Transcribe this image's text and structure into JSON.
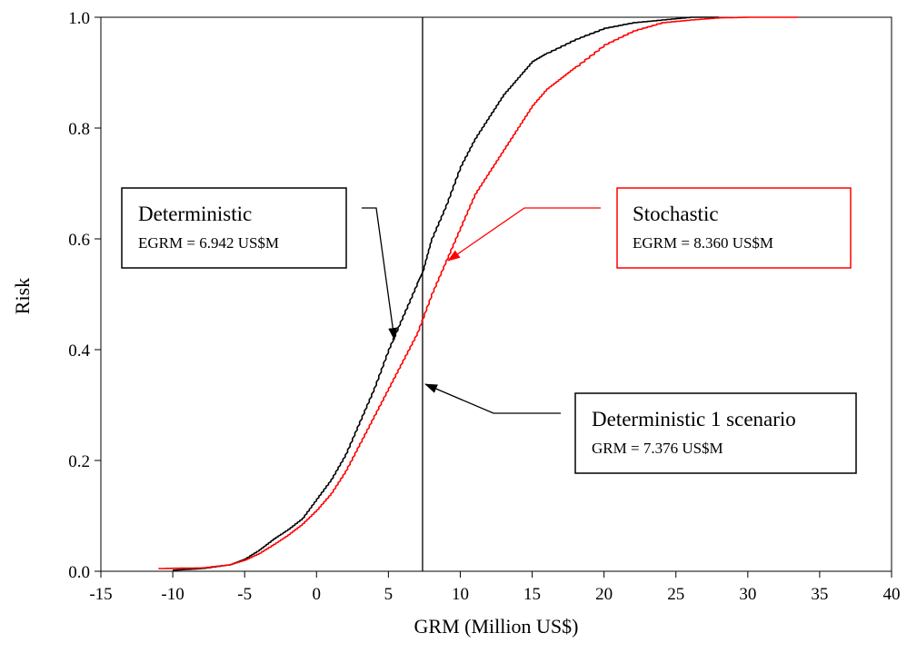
{
  "chart_data": {
    "type": "line",
    "xlabel": "GRM (Million US$)",
    "ylabel": "Risk",
    "xlim": [
      -15,
      40
    ],
    "ylim": [
      0,
      1
    ],
    "x_ticks": [
      "-15",
      "-10",
      "-5",
      "0",
      "5",
      "10",
      "15",
      "20",
      "25",
      "30",
      "35",
      "40"
    ],
    "y_ticks": [
      "0.0",
      "0.2",
      "0.4",
      "0.6",
      "0.8",
      "1.0"
    ],
    "grid": false,
    "vertical_line": {
      "x": 7.376
    },
    "series": [
      {
        "name": "Deterministic",
        "color": "#000000",
        "x": [
          -10,
          -8,
          -6,
          -5,
          -4,
          -3,
          -2,
          -1,
          0,
          1,
          2,
          3,
          4,
          5,
          6,
          7,
          7.376,
          8,
          9,
          10,
          11,
          12,
          13,
          14,
          15,
          16,
          18,
          20,
          22,
          24,
          26,
          28
        ],
        "y": [
          0.002,
          0.005,
          0.012,
          0.022,
          0.038,
          0.058,
          0.075,
          0.095,
          0.13,
          0.165,
          0.21,
          0.27,
          0.33,
          0.4,
          0.46,
          0.52,
          0.54,
          0.6,
          0.66,
          0.73,
          0.78,
          0.82,
          0.86,
          0.89,
          0.92,
          0.935,
          0.96,
          0.98,
          0.99,
          0.995,
          1.0,
          1.0
        ]
      },
      {
        "name": "Stochastic",
        "color": "#ff0000",
        "x": [
          -11,
          -8,
          -6,
          -5,
          -4,
          -3,
          -2,
          -1,
          0,
          1,
          2,
          3,
          4,
          5,
          6,
          7,
          8,
          9,
          10,
          11,
          12,
          13,
          14,
          15,
          16,
          17,
          18,
          20,
          22,
          24,
          26,
          28,
          30,
          33.5
        ],
        "y": [
          0.005,
          0.006,
          0.012,
          0.02,
          0.032,
          0.048,
          0.065,
          0.085,
          0.11,
          0.14,
          0.18,
          0.23,
          0.28,
          0.33,
          0.38,
          0.43,
          0.5,
          0.56,
          0.62,
          0.68,
          0.72,
          0.76,
          0.8,
          0.84,
          0.87,
          0.89,
          0.91,
          0.95,
          0.975,
          0.99,
          0.995,
          0.999,
          1.0,
          1.0
        ]
      }
    ],
    "annotations": [
      {
        "title": "Deterministic",
        "subtitle": "EGRM = 6.942 US$M",
        "color": "#000000"
      },
      {
        "title": "Stochastic",
        "subtitle": "EGRM = 8.360 US$M",
        "color": "#ff0000"
      },
      {
        "title": "Deterministic 1 scenario",
        "subtitle": "GRM = 7.376 US$M",
        "color": "#000000"
      }
    ]
  }
}
